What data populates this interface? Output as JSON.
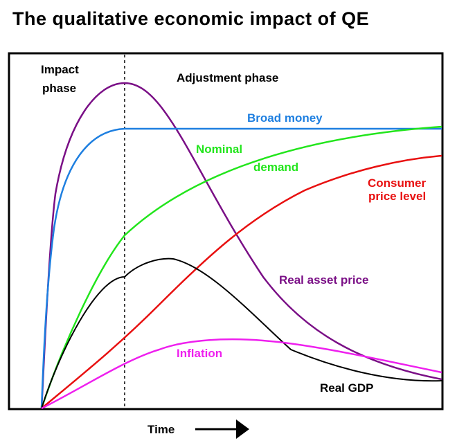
{
  "title": "The qualitative economic impact of QE",
  "phases": {
    "impact": [
      "Impact",
      "phase"
    ],
    "adjustment": "Adjustment phase"
  },
  "x_axis_label": "Time",
  "curves": [
    {
      "id": "real-asset-price",
      "label": [
        "Real asset price"
      ],
      "color": "#7a0f86"
    },
    {
      "id": "broad-money",
      "label": [
        "Broad money"
      ],
      "color": "#1e7fe0"
    },
    {
      "id": "nominal-demand",
      "label": [
        "Nominal",
        "demand"
      ],
      "color": "#22e51c"
    },
    {
      "id": "consumer-price-level",
      "label": [
        "Consumer",
        "price level"
      ],
      "color": "#e81010"
    },
    {
      "id": "real-gdp",
      "label": [
        "Real GDP"
      ],
      "color": "#000000"
    },
    {
      "id": "inflation",
      "label": [
        "Inflation"
      ],
      "color": "#ee1fee"
    }
  ],
  "colors": {
    "frame": "#000000",
    "background": "#ffffff"
  }
}
